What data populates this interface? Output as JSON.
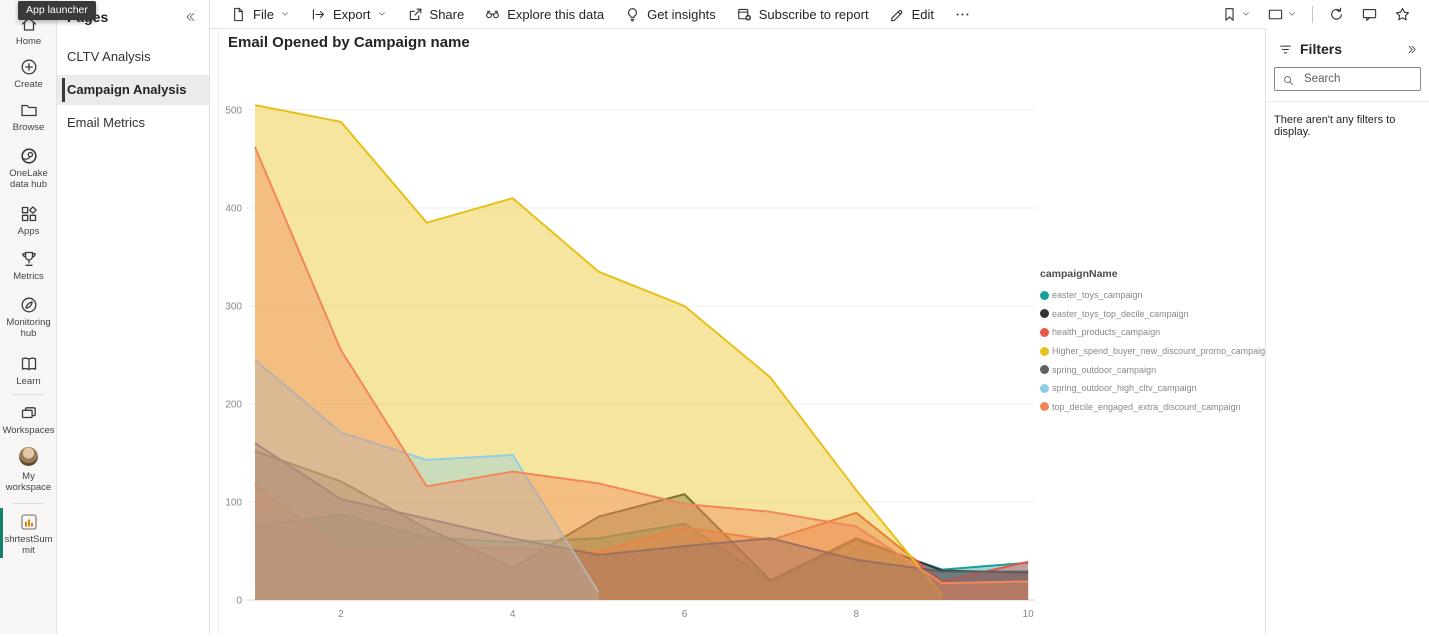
{
  "app": {
    "tooltip": "App launcher"
  },
  "left_rail": {
    "items": [
      {
        "label": "Home",
        "icon": "home-icon"
      },
      {
        "label": "Create",
        "icon": "create-icon"
      },
      {
        "label": "Browse",
        "icon": "browse-icon"
      },
      {
        "label": "OneLake data hub",
        "icon": "onelake-icon"
      },
      {
        "label": "Apps",
        "icon": "apps-icon"
      },
      {
        "label": "Metrics",
        "icon": "metrics-icon"
      },
      {
        "label": "Monitoring hub",
        "icon": "monitoring-icon"
      },
      {
        "label": "Learn",
        "icon": "learn-icon",
        "divider_after": true
      },
      {
        "label": "Workspaces",
        "icon": "workspaces-icon"
      },
      {
        "label": "My workspace",
        "icon": "avatar",
        "divider_after": true
      },
      {
        "label": "shrtestSummit",
        "icon": "report-icon",
        "selected": true
      }
    ]
  },
  "pages_panel": {
    "title": "Pages",
    "items": [
      {
        "label": "CLTV Analysis",
        "selected": false
      },
      {
        "label": "Campaign Analysis",
        "selected": true
      },
      {
        "label": "Email Metrics",
        "selected": false
      }
    ]
  },
  "toolbar": {
    "left_items": [
      {
        "label": "File",
        "icon": "file-icon",
        "dropdown": true
      },
      {
        "label": "Export",
        "icon": "export-icon",
        "dropdown": true
      },
      {
        "label": "Share",
        "icon": "share-icon"
      },
      {
        "label": "Explore this data",
        "icon": "explore-icon"
      },
      {
        "label": "Get insights",
        "icon": "insights-icon"
      },
      {
        "label": "Subscribe to report",
        "icon": "subscribe-icon"
      },
      {
        "label": "Edit",
        "icon": "edit-icon"
      },
      {
        "label": "",
        "icon": "more-icon"
      }
    ],
    "right_items": [
      {
        "icon": "bookmark-icon",
        "dropdown": true
      },
      {
        "icon": "view-icon",
        "dropdown": true
      },
      {
        "divider": true
      },
      {
        "icon": "refresh-icon"
      },
      {
        "icon": "comment-icon"
      },
      {
        "icon": "star-icon"
      }
    ]
  },
  "report": {
    "title": "Email Opened by Campaign name"
  },
  "chart_data": {
    "type": "area",
    "title": "Email Opened by Campaign name",
    "legend_title": "campaignName",
    "legend_position": "right",
    "grid": true,
    "x_start": 1,
    "x_ticks": [
      2,
      4,
      6,
      8,
      10
    ],
    "y_ticks": [
      0,
      100,
      200,
      300,
      400,
      500
    ],
    "xlim": [
      1,
      10
    ],
    "ylim": [
      0,
      500
    ],
    "series": [
      {
        "name": "easter_toys_campaign",
        "color": "#16A09A",
        "values": [
          75,
          87,
          64,
          59,
          63,
          78,
          19,
          61,
          31,
          38
        ]
      },
      {
        "name": "easter_toys_top_decile_campaign",
        "color": "#333638",
        "values": [
          152,
          121,
          73,
          33,
          85,
          108,
          20,
          63,
          30,
          28
        ]
      },
      {
        "name": "health_products_campaign",
        "color": "#E8544E",
        "values": [
          118,
          49,
          54,
          53,
          49,
          74,
          61,
          89,
          19,
          39
        ]
      },
      {
        "name": "Higher_spend_buyer_new_discount_promo_campaign",
        "color": "#E7C018",
        "values": [
          505,
          488,
          385,
          410,
          335,
          300,
          227,
          112,
          5
        ]
      },
      {
        "name": "spring_outdoor_campaign",
        "color": "#5F6062",
        "values": [
          160,
          103,
          83,
          63,
          46,
          55,
          63,
          41,
          29,
          29
        ]
      },
      {
        "name": "spring_outdoor_high_cltv_campaign",
        "color": "#8FCFE3",
        "values": [
          245,
          171,
          143,
          148,
          8
        ]
      },
      {
        "name": "top_decile_engaged_extra_discount_campaign",
        "color": "#F2885A",
        "values": [
          462,
          255,
          116,
          131,
          119,
          98,
          90,
          75,
          17,
          19
        ]
      }
    ]
  },
  "filters_panel": {
    "title": "Filters",
    "search_placeholder": "Search",
    "empty_message": "There aren't any filters to display."
  }
}
